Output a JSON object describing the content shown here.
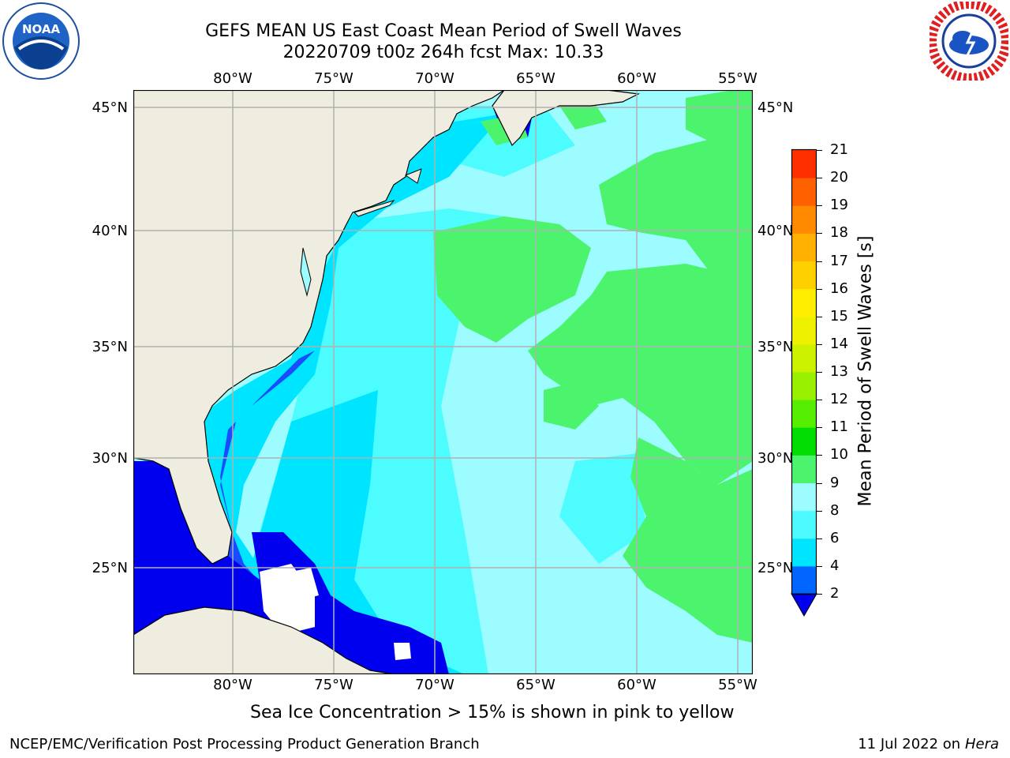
{
  "header": {
    "title_line1": "GEFS MEAN US East Coast Mean Period of Swell Waves",
    "title_line2": "20220709 t00z 264h fcst   Max: 10.33",
    "left_logo": {
      "name": "noaa-logo",
      "text": "NOAA"
    },
    "right_logo": {
      "name": "nws-logo",
      "text": "NATIONAL WEATHER SERVICE"
    }
  },
  "map": {
    "lon_labels": [
      "80°W",
      "75°W",
      "70°W",
      "65°W",
      "60°W",
      "55°W"
    ],
    "lat_labels": [
      "45°N",
      "40°N",
      "35°N",
      "30°N",
      "25°N"
    ],
    "colors": {
      "land": "#eeeddf",
      "ocean_2_4": "#0000ff",
      "ocean_4_6": "#00e5ff",
      "ocean_6_8": "#4dfcff",
      "ocean_8_9": "#9cfcff",
      "ocean_9_10": "#4cf46e",
      "grid": "#b0b0b0",
      "coast": "#000000"
    }
  },
  "colorbar": {
    "label": "Mean Period of Swell Waves [s]",
    "ticks": [
      "2",
      "4",
      "6",
      "8",
      "9",
      "10",
      "11",
      "12",
      "13",
      "14",
      "15",
      "16",
      "17",
      "18",
      "19",
      "20",
      "21"
    ],
    "colors": [
      "#0066ff",
      "#00e5ff",
      "#4cfaff",
      "#9cfcff",
      "#4cf46e",
      "#00dd00",
      "#55ee00",
      "#99f000",
      "#ccf200",
      "#eef200",
      "#ffee00",
      "#ffd000",
      "#ffb000",
      "#ff8a00",
      "#ff6000",
      "#ff3000",
      "#ff0000"
    ],
    "under_color": "#0000ee"
  },
  "footer": {
    "note": "Sea Ice Concentration > 15% is shown in pink to yellow",
    "left": "NCEP/EMC/Verification Post Processing Product Generation Branch",
    "right_prefix": "11 Jul 2022 on ",
    "right_host": "Hera"
  }
}
